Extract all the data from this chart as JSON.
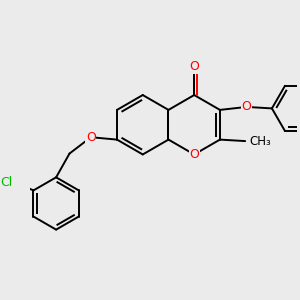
{
  "bg_color": "#ebebeb",
  "bond_color": "#000000",
  "bond_width": 1.4,
  "atom_colors": {
    "O": "#ff0000",
    "Cl": "#00bb00",
    "C": "#000000"
  },
  "font_size_atom": 8.5,
  "scale": 0.78
}
